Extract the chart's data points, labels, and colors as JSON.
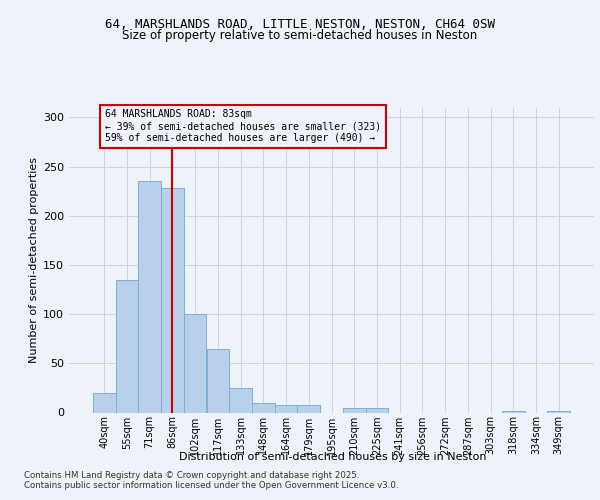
{
  "title1": "64, MARSHLANDS ROAD, LITTLE NESTON, NESTON, CH64 0SW",
  "title2": "Size of property relative to semi-detached houses in Neston",
  "xlabel": "Distribution of semi-detached houses by size in Neston",
  "ylabel": "Number of semi-detached properties",
  "categories": [
    "40sqm",
    "55sqm",
    "71sqm",
    "86sqm",
    "102sqm",
    "117sqm",
    "133sqm",
    "148sqm",
    "164sqm",
    "179sqm",
    "195sqm",
    "210sqm",
    "225sqm",
    "241sqm",
    "256sqm",
    "272sqm",
    "287sqm",
    "303sqm",
    "318sqm",
    "334sqm",
    "349sqm"
  ],
  "values": [
    20,
    135,
    235,
    228,
    100,
    65,
    25,
    10,
    8,
    8,
    0,
    5,
    5,
    0,
    0,
    0,
    0,
    0,
    2,
    0,
    2
  ],
  "bar_color": "#b8d0ea",
  "bar_edge_color": "#7aafd4",
  "grid_color": "#c8d4e8",
  "vline_x": 3.0,
  "vline_color": "#cc0000",
  "annotation_title": "64 MARSHLANDS ROAD: 83sqm",
  "annotation_line1": "← 39% of semi-detached houses are smaller (323)",
  "annotation_line2": "59% of semi-detached houses are larger (490) →",
  "annotation_box_color": "#cc0000",
  "ylim": [
    0,
    310
  ],
  "yticks": [
    0,
    50,
    100,
    150,
    200,
    250,
    300
  ],
  "footer1": "Contains HM Land Registry data © Crown copyright and database right 2025.",
  "footer2": "Contains public sector information licensed under the Open Government Licence v3.0.",
  "bg_color": "#eef2f9"
}
